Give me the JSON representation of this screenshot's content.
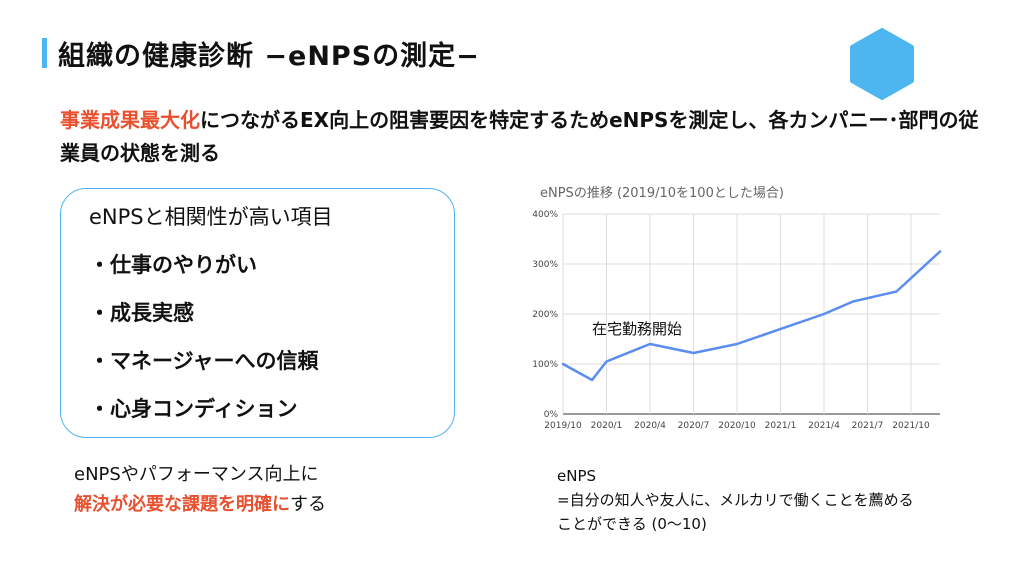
{
  "slide": {
    "title": "組織の健康診断 −eNPSの測定−",
    "logo_icon": "hexagon-logo",
    "accent_color": "#e8512f",
    "brand_color": "#4db6f0"
  },
  "lead": {
    "highlight": "事業成果最大化",
    "rest": "につながるEX向上の阻害要因を特定するためeNPSを測定し、各カンパニー･部門の従業員の状態を測る"
  },
  "box": {
    "heading": "eNPSと相関性が高い項目",
    "items": [
      "・仕事のやりがい",
      "・成長実感",
      "・マネージャーへの信頼",
      "・心身コンディション"
    ]
  },
  "note": {
    "line1": "eNPSやパフォーマンス向上に",
    "line2_highlight": "解決が必要な課題を明確に",
    "line2_rest": "する"
  },
  "chart_data": {
    "type": "line",
    "title": "eNPSの推移 (2019/10を100とした場合)",
    "x_ticks": [
      "2019/10",
      "2020/1",
      "2020/4",
      "2020/7",
      "2020/10",
      "2021/1",
      "2021/4",
      "2021/7",
      "2021/10"
    ],
    "y_ticks": [
      "0%",
      "100%",
      "200%",
      "300%",
      "400%"
    ],
    "ylim": [
      0,
      400
    ],
    "series": [
      {
        "color": "#5b8def",
        "points": [
          {
            "x": "2019/10",
            "y": 100
          },
          {
            "x": "2019/12",
            "y": 68
          },
          {
            "x": "2020/1",
            "y": 105
          },
          {
            "x": "2020/4",
            "y": 140
          },
          {
            "x": "2020/7",
            "y": 122
          },
          {
            "x": "2020/10",
            "y": 140
          },
          {
            "x": "2021/4",
            "y": 200
          },
          {
            "x": "2021/6",
            "y": 225
          },
          {
            "x": "2021/9",
            "y": 245
          },
          {
            "x": "2021/12",
            "y": 325
          }
        ]
      }
    ],
    "annotation": {
      "text": "在宅勤務開始",
      "x": "2020/4",
      "y": 160
    },
    "grid": true
  },
  "definition": {
    "line1": "eNPS",
    "line2": "=自分の知人や友人に、メルカリで働くことを薦める",
    "line3": "ことができる (0〜10)"
  }
}
